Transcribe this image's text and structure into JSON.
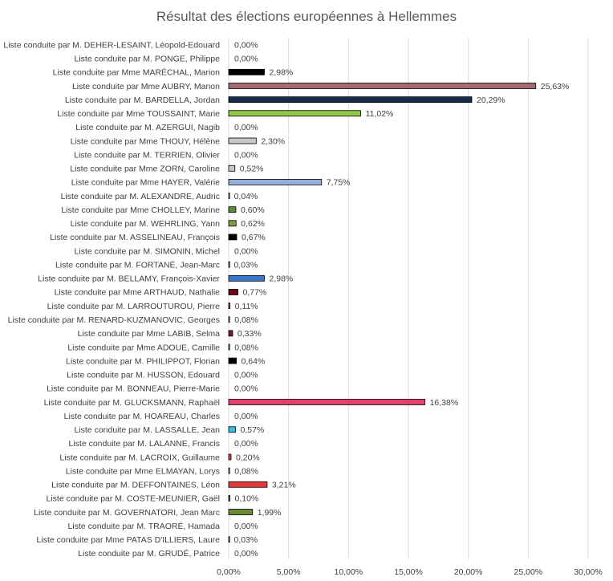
{
  "chart_data": {
    "type": "bar",
    "orientation": "horizontal",
    "title": "Résultat des élections européennes à Hellemmes",
    "xlabel": "",
    "ylabel": "",
    "xlim": [
      0,
      30
    ],
    "x_ticks": [
      "0,00%",
      "5,00%",
      "10,00%",
      "15,00%",
      "20,00%",
      "25,00%",
      "30,00%"
    ],
    "grid": true,
    "legend": "none",
    "categories": [
      "Liste conduite par M. DEHER-LESAINT, Léopold-Edouard",
      "Liste conduite par M. PONGE, Philippe",
      "Liste conduite par Mme MARÉCHAL, Marion",
      "Liste conduite par Mme AUBRY, Manon",
      "Liste conduite par M. BARDELLA, Jordan",
      "Liste conduite par Mme TOUSSAINT, Marie",
      "Liste conduite par M. AZERGUI, Nagib",
      "Liste conduite par Mme THOUY, Hélène",
      "Liste conduite par M. TERRIEN, Olivier",
      "Liste conduite par Mme ZORN, Caroline",
      "Liste conduite par Mme HAYER, Valérie",
      "Liste conduite par M. ALEXANDRE, Audric",
      "Liste conduite par Mme CHOLLEY, Marine",
      "Liste conduite par M. WEHRLING, Yann",
      "Liste conduite par M. ASSELINEAU, François",
      "Liste conduite par M. SIMONIN, Michel",
      "Liste conduite par M. FORTANÉ, Jean-Marc",
      "Liste conduite par M. BELLAMY, François-Xavier",
      "Liste conduite par Mme ARTHAUD, Nathalie",
      "Liste conduite par M. LARROUTUROU, Pierre",
      "Liste conduite par M. RENARD-KUZMANOVIC, Georges",
      "Liste conduite par Mme LABIB, Selma",
      "Liste conduite par Mme ADOUE, Camille",
      "Liste conduite par M. PHILIPPOT, Florian",
      "Liste conduite par M. HUSSON, Edouard",
      "Liste conduite par M. BONNEAU, Pierre-Marie",
      "Liste conduite par M. GLUCKSMANN, Raphaël",
      "Liste conduite par M. HOAREAU, Charles",
      "Liste conduite par M. LASSALLE, Jean",
      "Liste conduite par M. LALANNE, Francis",
      "Liste conduite par M. LACROIX, Guillaume",
      "Liste conduite par Mme ELMAYAN, Lorys",
      "Liste conduite par M. DEFFONTAINES, Léon",
      "Liste conduite par M. COSTE-MEUNIER, Gaël",
      "Liste conduite par M. GOVERNATORI, Jean Marc",
      "Liste conduite par M. TRAORÉ, Hamada",
      "Liste conduite par Mme PATAS D'ILLIERS, Laure",
      "Liste conduite par M. GRUDÉ, Patrice"
    ],
    "values": [
      0.0,
      0.0,
      2.98,
      25.63,
      20.29,
      11.02,
      0.0,
      2.3,
      0.0,
      0.52,
      7.75,
      0.04,
      0.6,
      0.62,
      0.67,
      0.0,
      0.03,
      2.98,
      0.77,
      0.11,
      0.08,
      0.33,
      0.08,
      0.64,
      0.0,
      0.0,
      16.38,
      0.0,
      0.57,
      0.0,
      0.2,
      0.08,
      3.21,
      0.1,
      1.99,
      0.0,
      0.03,
      0.0
    ],
    "labels": [
      "0,00%",
      "0,00%",
      "2,98%",
      "25,63%",
      "20,29%",
      "11,02%",
      "0,00%",
      "2,30%",
      "0,00%",
      "0,52%",
      "7,75%",
      "0,04%",
      "0,60%",
      "0,62%",
      "0,67%",
      "0,00%",
      "0,03%",
      "2,98%",
      "0,77%",
      "0,11%",
      "0,08%",
      "0,33%",
      "0,08%",
      "0,64%",
      "0,00%",
      "0,00%",
      "16,38%",
      "0,00%",
      "0,57%",
      "0,00%",
      "0,20%",
      "0,08%",
      "3,21%",
      "0,10%",
      "1,99%",
      "0,00%",
      "0,03%",
      "0,00%"
    ],
    "colors": [
      "#000000",
      "#000000",
      "#000000",
      "#a36a72",
      "#142b4c",
      "#8fc84a",
      "#000000",
      "#c8c8c8",
      "#000000",
      "#c8c8c8",
      "#94b0d8",
      "#d0d0d0",
      "#5a8a3a",
      "#78a23e",
      "#000000",
      "#000000",
      "#9aa8c0",
      "#3a78c8",
      "#6a0a14",
      "#d04060",
      "#c8c8c8",
      "#7a1e22",
      "#b8b8c8",
      "#000000",
      "#000000",
      "#000000",
      "#e4406a",
      "#000000",
      "#38c0e0",
      "#000000",
      "#e84050",
      "#d8d8d8",
      "#e43a3a",
      "#5a7a3a",
      "#6a8a3a",
      "#000000",
      "#c89070",
      "#000000"
    ]
  }
}
